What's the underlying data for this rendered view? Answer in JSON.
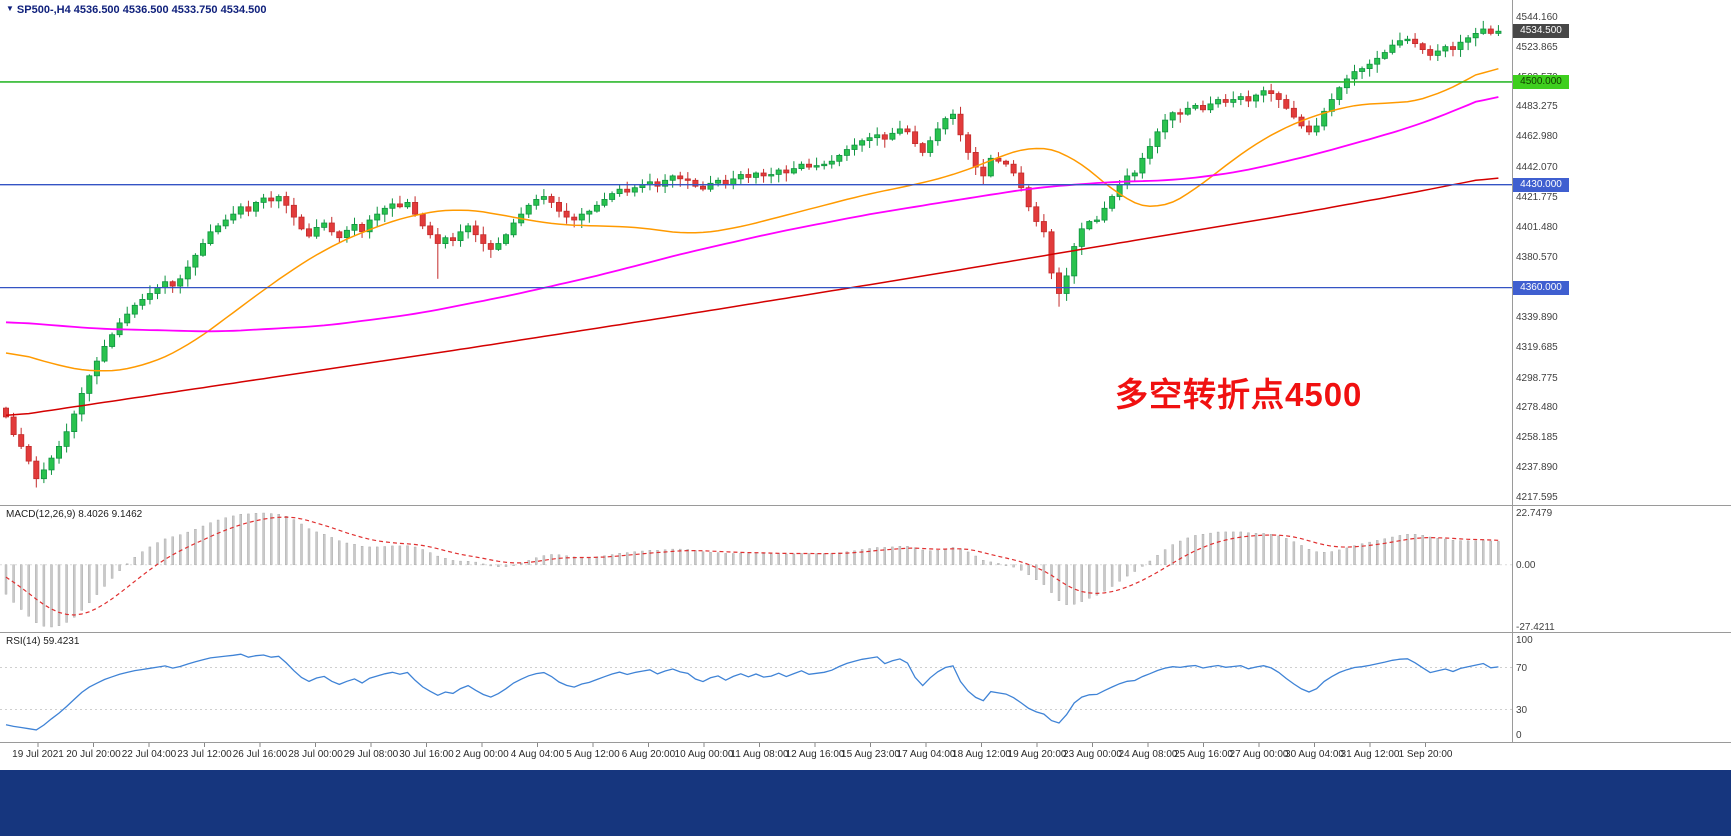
{
  "header": {
    "marker": "▼",
    "symbol_line": "SP500-,H4 4536.500 4536.500 4533.750 4534.500"
  },
  "annotation": {
    "text": "多空转折点4500"
  },
  "colors": {
    "up": "#29c24e",
    "up_border": "#0f9340",
    "down": "#e23b3b",
    "down_border": "#c32b2b",
    "ma_fast": "#ff9a00",
    "ma_mid": "#ff00ff",
    "ma_slow": "#d40000",
    "hline_green": "#2eb82e",
    "hline_blue": "#3453c4",
    "macd_hist": "#c9c9c9",
    "macd_hist_border": "#a5a5a5",
    "macd_signal": "#e03030",
    "rsi_line": "#3f83d6",
    "axis_text": "#3f3f3f",
    "header_text": "#10217c",
    "annotation_red": "#f01010",
    "bottom_bar": "#16367e",
    "badge_last_bg": "#474747",
    "badge_last_fg": "#ffffff",
    "badge_green_bg": "#3ecf1e",
    "badge_green_fg": "#123b00",
    "badge_blue_bg": "#3f5fd0",
    "badge_blue_fg": "#ffffff"
  },
  "price_axis": {
    "last_price_badge": "4534.500",
    "level_badges": [
      {
        "label": "4500.000",
        "price": 4500,
        "style": "green"
      },
      {
        "label": "4430.000",
        "price": 4430,
        "style": "blue"
      },
      {
        "label": "4360.000",
        "price": 4360,
        "style": "blue"
      }
    ]
  },
  "macd_panel": {
    "title": "MACD(12,26,9) 8.4026 9.1462",
    "axis_labels": [
      "22.7479",
      "0.00",
      "-27.4211"
    ]
  },
  "rsi_panel": {
    "title": "RSI(14) 59.4231",
    "axis_labels": [
      "100",
      "70",
      "30",
      "0"
    ]
  },
  "chart_data": {
    "type": "candlestick",
    "title": "SP500- H4",
    "symbol": "SP500-",
    "timeframe": "H4",
    "last_bar_ohlc": {
      "open": 4536.5,
      "high": 4536.5,
      "low": 4533.75,
      "close": 4534.5
    },
    "last_price": 4534.5,
    "ylim": [
      4212.1,
      4555.7
    ],
    "y_ticks": [
      "4544.160",
      "4523.865",
      "4503.570",
      "4483.275",
      "4462.980",
      "4442.070",
      "4421.775",
      "4401.480",
      "4380.570",
      "4339.890",
      "4319.685",
      "4298.775",
      "4278.480",
      "4258.185",
      "4237.890",
      "4217.595"
    ],
    "x_ticks": [
      "19 Jul 2021",
      "20 Jul 20:00",
      "22 Jul 04:00",
      "23 Jul 12:00",
      "26 Jul 16:00",
      "28 Jul 00:00",
      "29 Jul 08:00",
      "30 Jul 16:00",
      "2 Aug 00:00",
      "4 Aug 04:00",
      "5 Aug 12:00",
      "6 Aug 20:00",
      "10 Aug 00:00",
      "11 Aug 08:00",
      "12 Aug 16:00",
      "15 Aug 23:00",
      "17 Aug 04:00",
      "18 Aug 12:00",
      "19 Aug 20:00",
      "23 Aug 00:00",
      "24 Aug 08:00",
      "25 Aug 16:00",
      "27 Aug 00:00",
      "30 Aug 04:00",
      "31 Aug 12:00",
      "1 Sep 20:00"
    ],
    "first_open": 4278,
    "closes": [
      4272,
      4260,
      4252,
      4242,
      4230,
      4236,
      4244,
      4252,
      4262,
      4274,
      4288,
      4300,
      4310,
      4320,
      4328,
      4336,
      4342,
      4348,
      4352,
      4356,
      4360,
      4364,
      4361,
      4366,
      4374,
      4382,
      4390,
      4398,
      4402,
      4406,
      4410,
      4415,
      4412,
      4418,
      4421,
      4419,
      4422,
      4416,
      4408,
      4400,
      4395,
      4401,
      4404,
      4398,
      4394,
      4399,
      4403,
      4398,
      4406,
      4410,
      4414,
      4417,
      4415,
      4418,
      4410,
      4402,
      4396,
      4390,
      4394,
      4392,
      4398,
      4402,
      4396,
      4390,
      4386,
      4390,
      4396,
      4404,
      4410,
      4416,
      4420,
      4422,
      4418,
      4412,
      4408,
      4406,
      4410,
      4412,
      4416,
      4420,
      4424,
      4427,
      4425,
      4428,
      4430,
      4432,
      4429,
      4433,
      4436,
      4434,
      4433,
      4429,
      4427,
      4431,
      4433,
      4430,
      4434,
      4437,
      4435,
      4438,
      4436,
      4437,
      4440,
      4438,
      4441,
      4444,
      4442,
      4443,
      4444,
      4446,
      4450,
      4454,
      4457,
      4460,
      4462,
      4464,
      4461,
      4465,
      4468,
      4466,
      4458,
      4452,
      4460,
      4468,
      4475,
      4478,
      4464,
      4452,
      4442,
      4436,
      4448,
      4446,
      4444,
      4438,
      4428,
      4415,
      4405,
      4398,
      4370,
      4356,
      4368,
      4388,
      4400,
      4405,
      4406,
      4414,
      4422,
      4430,
      4436,
      4438,
      4448,
      4456,
      4466,
      4474,
      4479,
      4478,
      4482,
      4484,
      4481,
      4485,
      4488,
      4486,
      4488,
      4490,
      4487,
      4491,
      4494,
      4492,
      4488,
      4482,
      4476,
      4470,
      4466,
      4470,
      4480,
      4488,
      4496,
      4502,
      4507,
      4509,
      4512,
      4516,
      4520,
      4525,
      4528,
      4529,
      4526,
      4522,
      4518,
      4521,
      4524,
      4522,
      4527,
      4530,
      4533,
      4536,
      4533,
      4534.5
    ],
    "pre_closes": [
      4352,
      4356,
      4360,
      4363,
      4358,
      4350,
      4344,
      4340,
      4348,
      4354,
      4358,
      4362,
      4366,
      4370,
      4368,
      4372,
      4374,
      4370,
      4365,
      4360,
      4355,
      4350,
      4345,
      4348,
      4352,
      4356,
      4360,
      4364,
      4368,
      4372,
      4369,
      4364,
      4358,
      4352,
      4346,
      4340,
      4334,
      4328,
      4310,
      4296
    ],
    "wick_overrides": {
      "4": 4224,
      "57": 4366,
      "139": 4347
    },
    "moving_averages": [
      {
        "name": "fast",
        "color_key": "ma_fast",
        "anchors": [
          [
            0,
            4318
          ],
          [
            6,
            4308
          ],
          [
            12,
            4302
          ],
          [
            18,
            4306
          ],
          [
            24,
            4320
          ],
          [
            30,
            4343
          ],
          [
            36,
            4366
          ],
          [
            42,
            4386
          ],
          [
            48,
            4400
          ],
          [
            54,
            4410
          ],
          [
            60,
            4414
          ],
          [
            66,
            4409
          ],
          [
            72,
            4403
          ],
          [
            78,
            4402
          ],
          [
            84,
            4401
          ],
          [
            90,
            4396
          ],
          [
            96,
            4400
          ],
          [
            102,
            4408
          ],
          [
            108,
            4416
          ],
          [
            114,
            4424
          ],
          [
            120,
            4430
          ],
          [
            126,
            4438
          ],
          [
            132,
            4451
          ],
          [
            136,
            4457
          ],
          [
            140,
            4452
          ],
          [
            144,
            4436
          ],
          [
            148,
            4418
          ],
          [
            152,
            4412
          ],
          [
            156,
            4423
          ],
          [
            160,
            4439
          ],
          [
            164,
            4455
          ],
          [
            168,
            4467
          ],
          [
            172,
            4476
          ],
          [
            176,
            4482
          ],
          [
            180,
            4486
          ],
          [
            184,
            4485
          ],
          [
            188,
            4489
          ],
          [
            192,
            4499
          ],
          [
            195,
            4507
          ],
          [
            197,
            4514
          ]
        ]
      },
      {
        "name": "mid",
        "color_key": "ma_mid",
        "anchors": [
          [
            0,
            4337
          ],
          [
            12,
            4332
          ],
          [
            28,
            4330
          ],
          [
            42,
            4334
          ],
          [
            54,
            4342
          ],
          [
            66,
            4354
          ],
          [
            78,
            4368
          ],
          [
            90,
            4384
          ],
          [
            102,
            4398
          ],
          [
            114,
            4410
          ],
          [
            126,
            4420
          ],
          [
            136,
            4428
          ],
          [
            146,
            4432
          ],
          [
            154,
            4433
          ],
          [
            162,
            4438
          ],
          [
            170,
            4447
          ],
          [
            178,
            4458
          ],
          [
            186,
            4470
          ],
          [
            192,
            4482
          ],
          [
            197,
            4493
          ]
        ]
      },
      {
        "name": "slow",
        "color_key": "ma_slow",
        "anchors": [
          [
            0,
            4272
          ],
          [
            30,
            4295
          ],
          [
            60,
            4318
          ],
          [
            90,
            4342
          ],
          [
            120,
            4367
          ],
          [
            150,
            4393
          ],
          [
            170,
            4410
          ],
          [
            185,
            4424
          ],
          [
            197,
            4436
          ]
        ]
      }
    ],
    "hlines": [
      {
        "price": 4500,
        "color_key": "hline_green"
      },
      {
        "price": 4430,
        "color_key": "hline_blue"
      },
      {
        "price": 4360,
        "color_key": "hline_blue"
      }
    ],
    "macd": {
      "fast": 12,
      "slow": 26,
      "signal": 9,
      "current": 8.4026,
      "current_signal": 9.1462,
      "ymax": 22.7479,
      "ymin": -27.4211
    },
    "rsi": {
      "period": 14,
      "current": 59.4231,
      "ymax": 100,
      "ymin": 0,
      "levels": [
        70,
        30
      ]
    }
  }
}
